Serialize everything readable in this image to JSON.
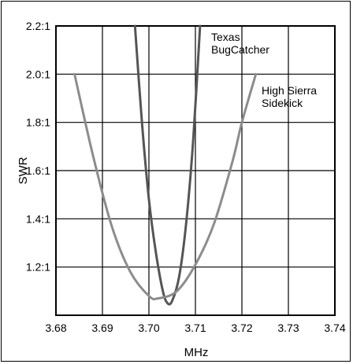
{
  "chart_data": {
    "type": "line",
    "title": "",
    "xlabel": "MHz",
    "ylabel": "SWR",
    "xlim": [
      3.68,
      3.74
    ],
    "ylim": [
      1.0,
      2.2
    ],
    "xticks": [
      3.68,
      3.69,
      3.7,
      3.71,
      3.72,
      3.73,
      3.74
    ],
    "xtick_labels": [
      "3.68",
      "3.69",
      "3.70",
      "3.71",
      "3.72",
      "3.73",
      "3.74"
    ],
    "yticks": [
      1.2,
      1.4,
      1.6,
      1.8,
      2.0,
      2.2
    ],
    "ytick_labels": [
      "1.2:1",
      "1.4:1",
      "1.6:1",
      "1.8:1",
      "2.0:1",
      "2.2:1"
    ],
    "grid": true,
    "legend": "inline labels near curves, top-right",
    "series": [
      {
        "name": "Texas BugCatcher",
        "label_lines": [
          "Texas",
          "BugCatcher"
        ],
        "color": "#555555",
        "x": [
          3.697,
          3.6985,
          3.7,
          3.7015,
          3.703,
          3.704,
          3.705,
          3.7065,
          3.708,
          3.7095,
          3.711
        ],
        "y": [
          2.2,
          1.8,
          1.48,
          1.26,
          1.1,
          1.05,
          1.06,
          1.16,
          1.38,
          1.72,
          2.2
        ]
      },
      {
        "name": "High Sierra Sidekick",
        "label_lines": [
          "High Sierra",
          "Sidekick"
        ],
        "color": "#8c8c8c",
        "x": [
          3.684,
          3.688,
          3.692,
          3.696,
          3.7,
          3.702,
          3.706,
          3.71,
          3.714,
          3.718,
          3.72,
          3.723
        ],
        "y": [
          2.0,
          1.66,
          1.37,
          1.18,
          1.08,
          1.07,
          1.1,
          1.21,
          1.38,
          1.64,
          1.8,
          2.0
        ]
      }
    ]
  }
}
